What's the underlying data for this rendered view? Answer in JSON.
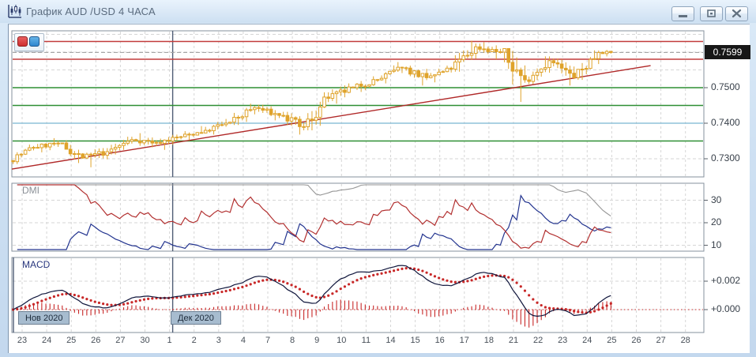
{
  "window": {
    "title": "График AUD /USD  4 ЧАСА",
    "icon": "candlestick-chart-icon",
    "buttons": {
      "minimize": "minimize",
      "restore": "restore",
      "close": "close"
    }
  },
  "toolbar": {
    "buttons": [
      {
        "name": "red-tool-button",
        "color": "#cf2f2f"
      },
      {
        "name": "blue-tool-button",
        "color": "#2f86cf"
      }
    ]
  },
  "chart_data": {
    "type": "candlestick",
    "title": "AUD/USD 4H with DMI and MACD",
    "timeframe": "4 ЧАСА",
    "current_price": {
      "text": "0.7599",
      "value": 0.7599
    },
    "price_axis_labels": [
      {
        "text": "0.7500",
        "value": 0.75
      },
      {
        "text": "0.7400",
        "value": 0.74
      },
      {
        "text": "0.7300",
        "value": 0.73
      }
    ],
    "price_grid_step": 0.005,
    "price_grid_range": [
      0.73,
      0.765
    ],
    "levels": [
      {
        "price": 0.763,
        "color": "#c23b3b",
        "kind": "resistance"
      },
      {
        "price": 0.758,
        "color": "#c23b3b",
        "kind": "resistance"
      },
      {
        "price": 0.75,
        "color": "#2f8f34",
        "kind": "support"
      },
      {
        "price": 0.745,
        "color": "#2f8f34",
        "kind": "support"
      },
      {
        "price": 0.74,
        "color": "#8fc2da",
        "kind": "pivot"
      },
      {
        "price": 0.735,
        "color": "#2f8f34",
        "kind": "support"
      }
    ],
    "trendline": {
      "from": {
        "day": 0,
        "price": 0.7271
      },
      "to": {
        "day": 26,
        "price": 0.7562
      },
      "color": "#b02828"
    },
    "months": [
      {
        "label": "Нов 2020",
        "tick": 0
      },
      {
        "label": "Дек 2020",
        "tick": 6
      }
    ],
    "day_labels": [
      "23",
      "24",
      "25",
      "26",
      "27",
      "30",
      "1",
      "2",
      "3",
      "4",
      "7",
      "8",
      "9",
      "10",
      "11",
      "14",
      "15",
      "16",
      "17",
      "18",
      "21",
      "22",
      "23",
      "24",
      "25",
      "26",
      "27",
      "28"
    ],
    "daily": [
      {
        "date": "Nov 23",
        "o": 0.7295,
        "h": 0.734,
        "l": 0.7285,
        "c": 0.7332,
        "bars": 6
      },
      {
        "date": "Nov 24",
        "o": 0.7332,
        "h": 0.7358,
        "l": 0.7318,
        "c": 0.7344,
        "bars": 6
      },
      {
        "date": "Nov 25",
        "o": 0.7344,
        "h": 0.7352,
        "l": 0.7288,
        "c": 0.7302,
        "bars": 6
      },
      {
        "date": "Nov 26",
        "o": 0.7302,
        "h": 0.733,
        "l": 0.7276,
        "c": 0.732,
        "bars": 6
      },
      {
        "date": "Nov 27",
        "o": 0.732,
        "h": 0.7362,
        "l": 0.7312,
        "c": 0.7354,
        "bars": 6
      },
      {
        "date": "Nov 30",
        "o": 0.7354,
        "h": 0.7372,
        "l": 0.7332,
        "c": 0.7346,
        "bars": 6
      },
      {
        "date": "Dec 1",
        "o": 0.7346,
        "h": 0.7368,
        "l": 0.7325,
        "c": 0.7362,
        "bars": 6
      },
      {
        "date": "Dec 2",
        "o": 0.7362,
        "h": 0.7392,
        "l": 0.7352,
        "c": 0.738,
        "bars": 6
      },
      {
        "date": "Dec 3",
        "o": 0.738,
        "h": 0.7412,
        "l": 0.7368,
        "c": 0.7403,
        "bars": 6
      },
      {
        "date": "Dec 4",
        "o": 0.7403,
        "h": 0.7455,
        "l": 0.7395,
        "c": 0.7444,
        "bars": 6
      },
      {
        "date": "Dec 7",
        "o": 0.7444,
        "h": 0.7452,
        "l": 0.7408,
        "c": 0.7422,
        "bars": 6
      },
      {
        "date": "Dec 8",
        "o": 0.7422,
        "h": 0.7432,
        "l": 0.7368,
        "c": 0.739,
        "bars": 6
      },
      {
        "date": "Dec 9",
        "o": 0.739,
        "h": 0.7487,
        "l": 0.738,
        "c": 0.747,
        "bars": 6
      },
      {
        "date": "Dec 10",
        "o": 0.747,
        "h": 0.7512,
        "l": 0.7455,
        "c": 0.75,
        "bars": 6
      },
      {
        "date": "Dec 11",
        "o": 0.75,
        "h": 0.7532,
        "l": 0.7488,
        "c": 0.7522,
        "bars": 6
      },
      {
        "date": "Dec 14",
        "o": 0.7522,
        "h": 0.7572,
        "l": 0.7512,
        "c": 0.7556,
        "bars": 6
      },
      {
        "date": "Dec 15",
        "o": 0.7556,
        "h": 0.7562,
        "l": 0.7506,
        "c": 0.7528,
        "bars": 6
      },
      {
        "date": "Dec 16",
        "o": 0.7528,
        "h": 0.7562,
        "l": 0.7515,
        "c": 0.7552,
        "bars": 6
      },
      {
        "date": "Dec 17",
        "o": 0.7552,
        "h": 0.7632,
        "l": 0.7545,
        "c": 0.7615,
        "bars": 6
      },
      {
        "date": "Dec 18",
        "o": 0.7615,
        "h": 0.7628,
        "l": 0.758,
        "c": 0.76,
        "bars": 6
      },
      {
        "date": "Dec 21",
        "o": 0.76,
        "h": 0.761,
        "l": 0.746,
        "c": 0.7522,
        "bars": 6
      },
      {
        "date": "Dec 22",
        "o": 0.7522,
        "h": 0.7588,
        "l": 0.751,
        "c": 0.7576,
        "bars": 6
      },
      {
        "date": "Dec 23",
        "o": 0.7576,
        "h": 0.7582,
        "l": 0.7506,
        "c": 0.7528,
        "bars": 6
      },
      {
        "date": "Dec 24",
        "o": 0.7528,
        "h": 0.7605,
        "l": 0.7522,
        "c": 0.7599,
        "bars": 6
      },
      {
        "date": "Dec 25",
        "o": 0.7599,
        "h": 0.7606,
        "l": 0.7588,
        "c": 0.7599,
        "bars": 3
      }
    ],
    "indicators": {
      "dmi": {
        "label": "DMI",
        "period": 14,
        "ticks": [
          30,
          20,
          10
        ],
        "colors": {
          "plus_di": "#b23030",
          "minus_di": "#23348f",
          "adx": "#969696"
        }
      },
      "macd": {
        "label": "MACD",
        "fast": 12,
        "slow": 26,
        "signal": 9,
        "ticks": [
          {
            "text": "+0.002",
            "value": 0.002
          },
          {
            "text": "+0.000",
            "value": 0
          }
        ],
        "colors": {
          "macd_line": "#10163c",
          "signal_line": "#c82828",
          "histogram": "#c82828"
        }
      }
    },
    "colors": {
      "candle": "#dfa32b",
      "grid": "#d6d6d6",
      "current_price_line": "#a5a5a5",
      "panel_border": "#85909c",
      "month_separator": "#4e5c74"
    }
  }
}
